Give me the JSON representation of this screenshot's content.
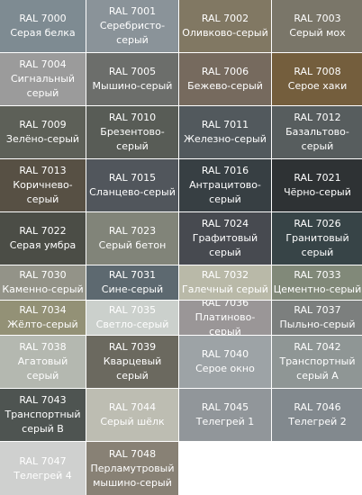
{
  "swatches": [
    {
      "code": "RAL 7000",
      "name": "Серая белка",
      "color": "#7e8b92"
    },
    {
      "code": "RAL 7001",
      "name": "Серебристо-\nсерый",
      "color": "#8a9399"
    },
    {
      "code": "RAL 7002",
      "name": "Оливково-серый",
      "color": "#817863"
    },
    {
      "code": "RAL 7003",
      "name": "Серый мох",
      "color": "#7a7669"
    },
    {
      "code": "RAL 7004",
      "name": "Сигнальный\nсерый",
      "color": "#9b9b9b"
    },
    {
      "code": "RAL 7005",
      "name": "Мышино-серый",
      "color": "#6c6e6b"
    },
    {
      "code": "RAL 7006",
      "name": "Бежево-серый",
      "color": "#766a5e"
    },
    {
      "code": "RAL 7008",
      "name": "Серое хаки",
      "color": "#745e3d"
    },
    {
      "code": "RAL 7009",
      "name": "Зелёно-серый",
      "color": "#5d6058"
    },
    {
      "code": "RAL 7010",
      "name": "Брезентово-\nсерый",
      "color": "#585c56"
    },
    {
      "code": "RAL 7011",
      "name": "Железно-серый",
      "color": "#52595d"
    },
    {
      "code": "RAL 7012",
      "name": "Базальтово-\nсерый",
      "color": "#575d5e"
    },
    {
      "code": "RAL 7013",
      "name": "Коричнево-\nсерый",
      "color": "#575044"
    },
    {
      "code": "RAL 7015",
      "name": "Сланцево-серый",
      "color": "#51565c"
    },
    {
      "code": "RAL 7016",
      "name": "Антрацитово-\nсерый",
      "color": "#373f43"
    },
    {
      "code": "RAL 7021",
      "name": "Чёрно-серый",
      "color": "#2e3234"
    },
    {
      "code": "RAL 7022",
      "name": "Серая умбра",
      "color": "#4b4d46"
    },
    {
      "code": "RAL 7023",
      "name": "Серый бетон",
      "color": "#818479"
    },
    {
      "code": "RAL 7024",
      "name": "Графитовый\nсерый",
      "color": "#474a50"
    },
    {
      "code": "RAL 7026",
      "name": "Гранитовый\nсерый",
      "color": "#374447"
    },
    {
      "code": "RAL 7030",
      "name": "Каменно-серый",
      "color": "#939388"
    },
    {
      "code": "RAL 7031",
      "name": "Сине-серый",
      "color": "#5d6970"
    },
    {
      "code": "RAL 7032",
      "name": "Галечный серый",
      "color": "#b9b9a8"
    },
    {
      "code": "RAL 7033",
      "name": "Цементно-серый",
      "color": "#818979"
    },
    {
      "code": "RAL 7034",
      "name": "Жёлто-серый",
      "color": "#939176"
    },
    {
      "code": "RAL 7035",
      "name": "Светло-серый",
      "color": "#cbd0cc"
    },
    {
      "code": "RAL 7036",
      "name": "Платиново-серый",
      "color": "#9a9697"
    },
    {
      "code": "RAL 7037",
      "name": "Пыльно-серый",
      "color": "#7c7f7e"
    },
    {
      "code": "RAL 7038",
      "name": "Агатовый\nсерый",
      "color": "#b4b8b0"
    },
    {
      "code": "RAL 7039",
      "name": "Кварцевый серый",
      "color": "#6b695f"
    },
    {
      "code": "RAL 7040",
      "name": "Серое окно",
      "color": "#9da3a6"
    },
    {
      "code": "RAL 7042",
      "name": "Транспортный\nсерый А",
      "color": "#8f9695"
    },
    {
      "code": "RAL 7043",
      "name": "Транспортный\nсерый В",
      "color": "#4e5451"
    },
    {
      "code": "RAL 7044",
      "name": "Серый шёлк",
      "color": "#bdbdb2"
    },
    {
      "code": "RAL 7045",
      "name": "Телегрей 1",
      "color": "#91969a"
    },
    {
      "code": "RAL 7046",
      "name": "Телегрей 2",
      "color": "#82898e"
    },
    {
      "code": "RAL 7047",
      "name": "Телегрей 4",
      "color": "#cfd0cf"
    },
    {
      "code": "RAL 7048",
      "name": "Перламутровый\nмышино-серый",
      "color": "#888175"
    }
  ]
}
